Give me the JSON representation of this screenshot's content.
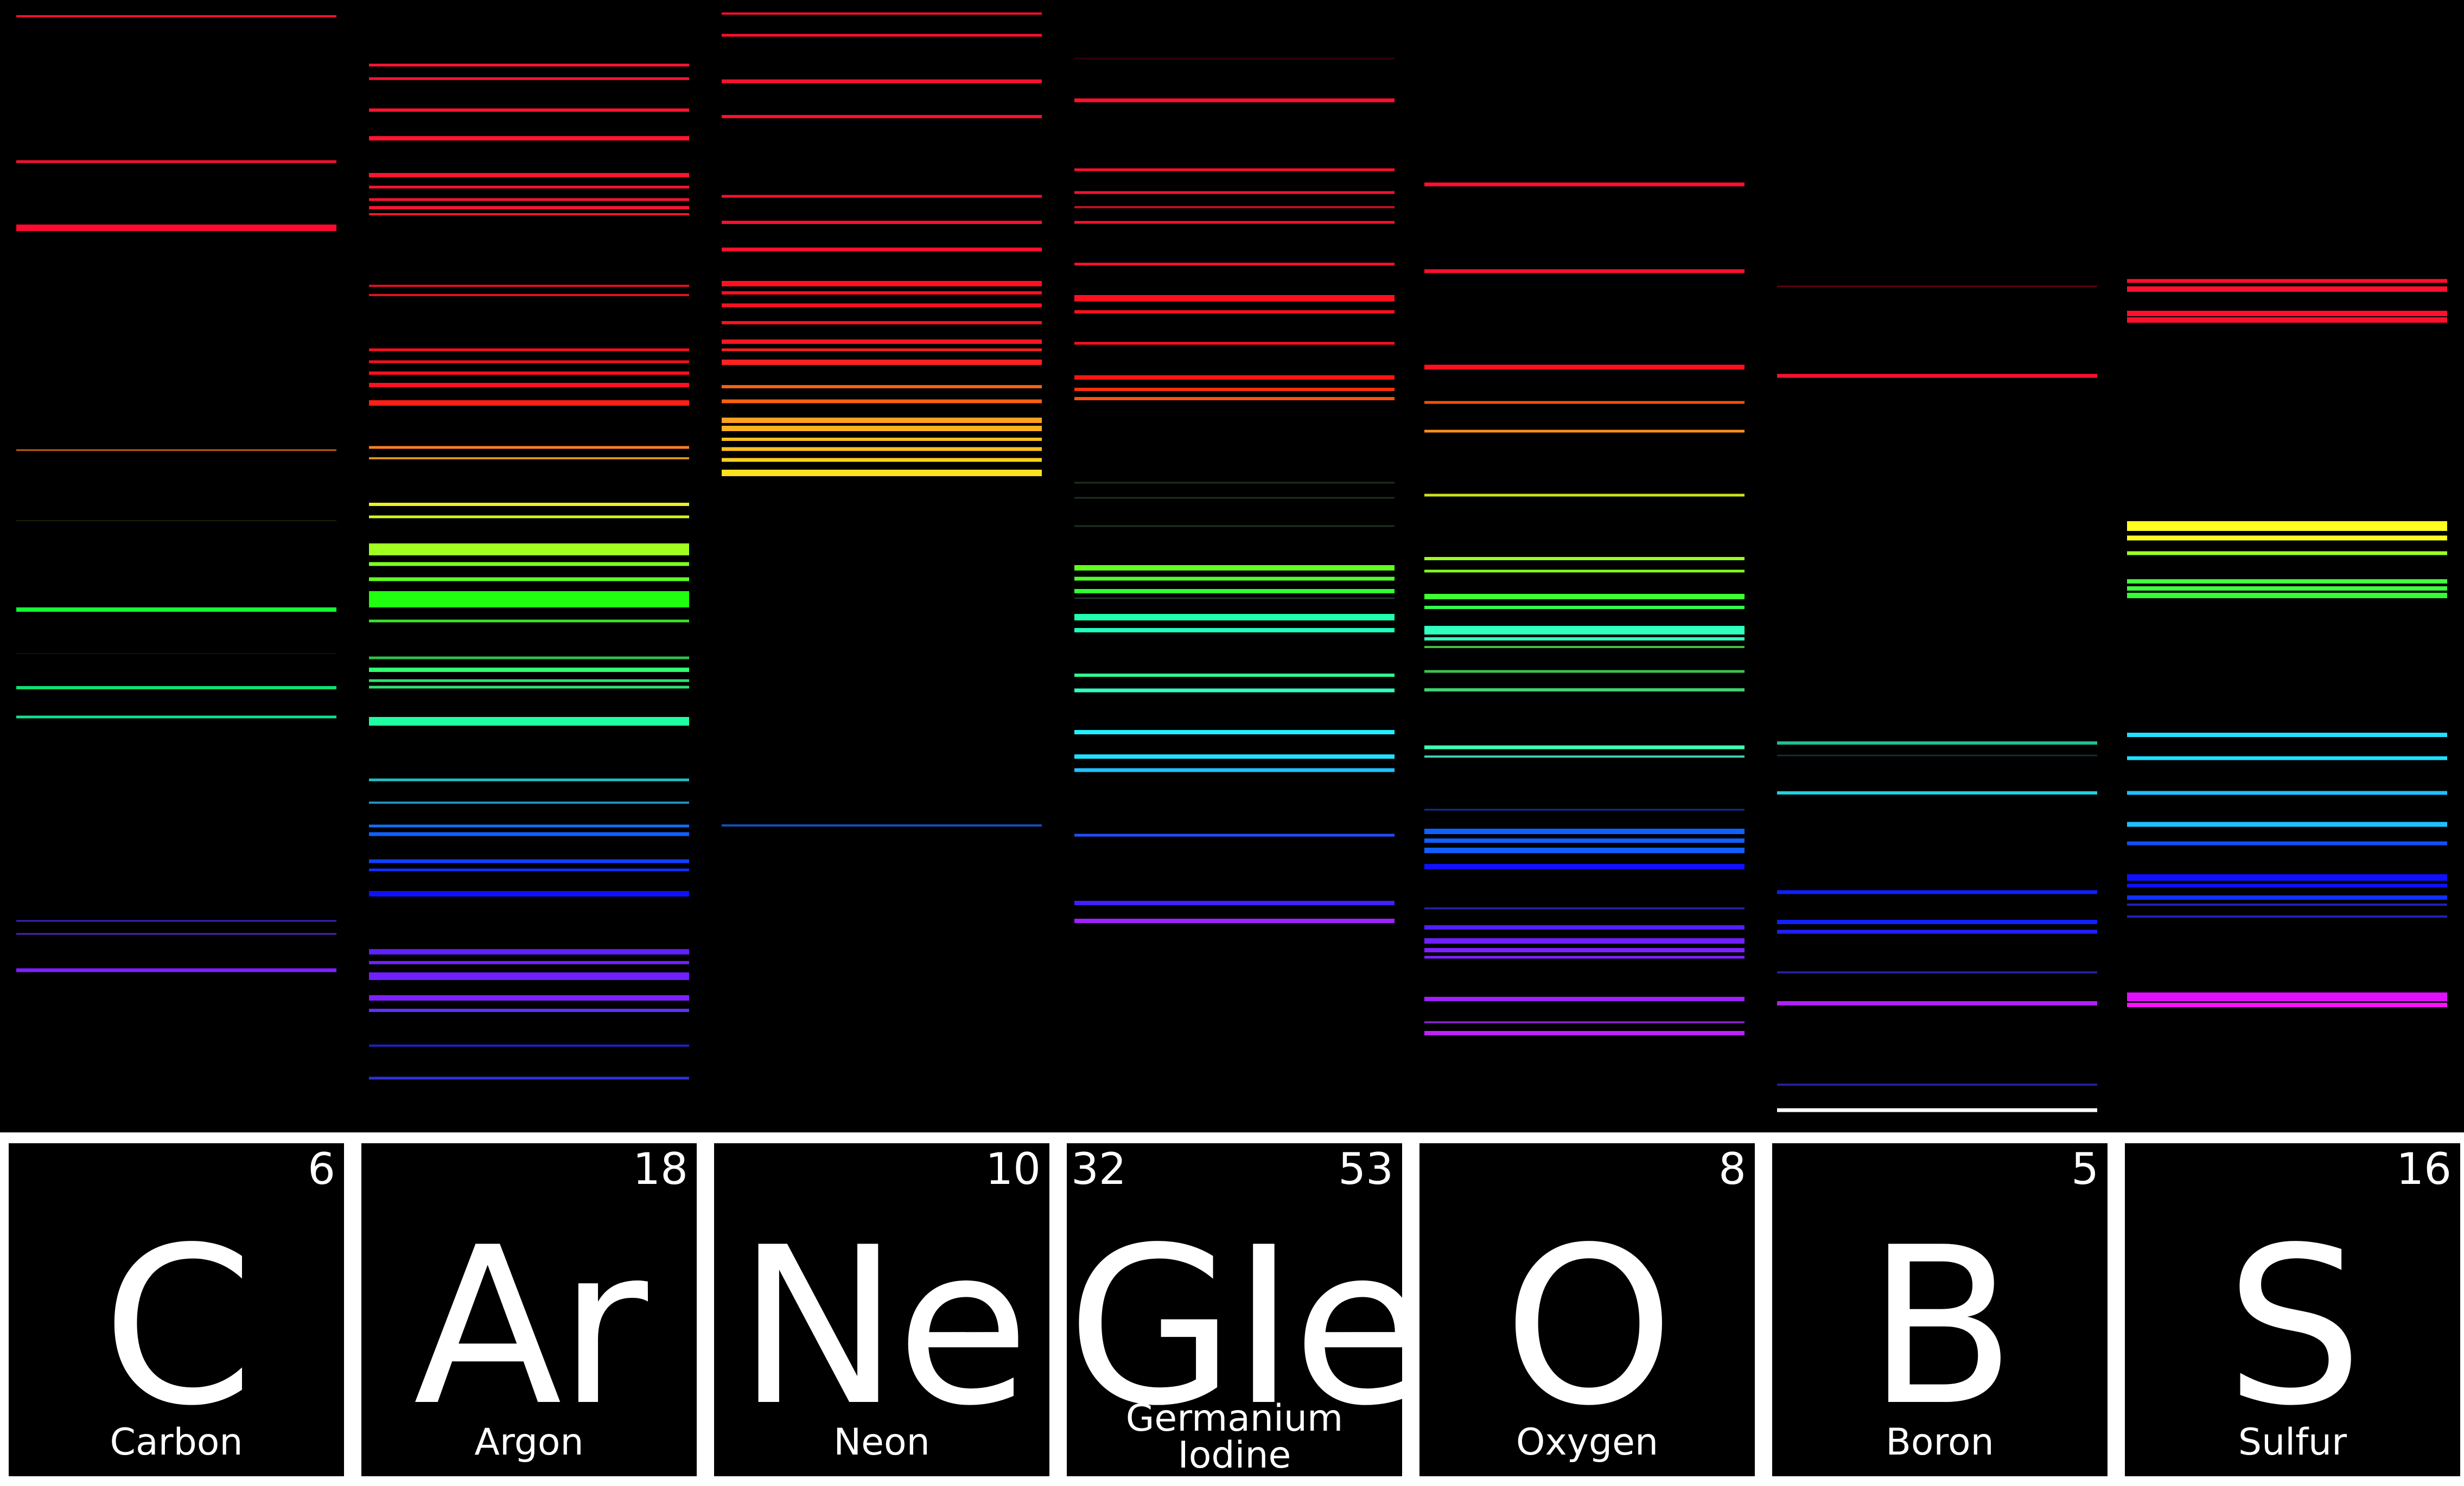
{
  "elements": [
    {
      "symbol": "C",
      "number": "6",
      "name": "Carbon",
      "lines": [
        [
          30,
          "#ff1030",
          4
        ],
        [
          298,
          "#ff1035",
          5
        ],
        [
          420,
          "#ff0a30",
          12
        ],
        [
          830,
          "#c06010",
          3
        ],
        [
          960,
          "#202000",
          2
        ],
        [
          1124,
          "#10ff30",
          8
        ],
        [
          1205,
          "#101010",
          2
        ],
        [
          1268,
          "#10e070",
          6
        ],
        [
          1322,
          "#10e090",
          5
        ],
        [
          1698,
          "#4020c0",
          3
        ],
        [
          1722,
          "#5020c0",
          3
        ],
        [
          1789,
          "#8020ff",
          7
        ]
      ]
    },
    {
      "symbol": "Ar",
      "number": "18",
      "name": "Argon",
      "lines": [
        [
          120,
          "#ff1535",
          5
        ],
        [
          145,
          "#ff1535",
          5
        ],
        [
          203,
          "#ff1530",
          6
        ],
        [
          255,
          "#ff1530",
          8
        ],
        [
          323,
          "#ff1530",
          8
        ],
        [
          345,
          "#ff1530",
          5
        ],
        [
          368,
          "#ff1530",
          5
        ],
        [
          383,
          "#ff1530",
          6
        ],
        [
          395,
          "#ff1530",
          4
        ],
        [
          527,
          "#e01025",
          4
        ],
        [
          544,
          "#e01025",
          4
        ],
        [
          645,
          "#ff1020",
          5
        ],
        [
          667,
          "#ff1020",
          5
        ],
        [
          688,
          "#ff1020",
          6
        ],
        [
          710,
          "#ff1020",
          8
        ],
        [
          743,
          "#ff2015",
          10
        ],
        [
          825,
          "#ff8020",
          5
        ],
        [
          845,
          "#e09020",
          4
        ],
        [
          930,
          "#f0f020",
          6
        ],
        [
          953,
          "#d0ff20",
          5
        ],
        [
          1013,
          "#a0ff20",
          22
        ],
        [
          1040,
          "#80ff20",
          7
        ],
        [
          1068,
          "#60ff20",
          7
        ],
        [
          1105,
          "#20ff10",
          30
        ],
        [
          1145,
          "#40e030",
          5
        ],
        [
          1213,
          "#30c050",
          5
        ],
        [
          1235,
          "#30ff70",
          8
        ],
        [
          1255,
          "#30e070",
          5
        ],
        [
          1267,
          "#30e070",
          5
        ],
        [
          1330,
          "#20ffa0",
          16
        ],
        [
          1438,
          "#20c0c0",
          5
        ],
        [
          1480,
          "#2090c0",
          4
        ],
        [
          1523,
          "#1070ff",
          5
        ],
        [
          1538,
          "#1060ff",
          7
        ],
        [
          1588,
          "#1040ff",
          7
        ],
        [
          1604,
          "#1030ff",
          5
        ],
        [
          1648,
          "#1010ff",
          10
        ],
        [
          1755,
          "#6020ff",
          10
        ],
        [
          1775,
          "#7020ff",
          6
        ],
        [
          1800,
          "#7020ff",
          14
        ],
        [
          1840,
          "#8020ff",
          10
        ],
        [
          1863,
          "#6030ff",
          6
        ],
        [
          1928,
          "#2020c0",
          4
        ],
        [
          1988,
          "#3030e0",
          5
        ]
      ]
    },
    {
      "symbol": "Ne",
      "number": "10",
      "name": "Neon",
      "lines": [
        [
          25,
          "#ff1030",
          4
        ],
        [
          65,
          "#ff1030",
          5
        ],
        [
          150,
          "#ff1030",
          7
        ],
        [
          215,
          "#ff1030",
          6
        ],
        [
          362,
          "#ff1030",
          5
        ],
        [
          410,
          "#ff1030",
          6
        ],
        [
          460,
          "#ff1030",
          7
        ],
        [
          523,
          "#ff1020",
          10
        ],
        [
          540,
          "#ff1020",
          6
        ],
        [
          563,
          "#ff1020",
          7
        ],
        [
          595,
          "#ff1020",
          6
        ],
        [
          630,
          "#ff1520",
          8
        ],
        [
          645,
          "#ff2020",
          5
        ],
        [
          668,
          "#ff2020",
          10
        ],
        [
          713,
          "#ff6010",
          6
        ],
        [
          740,
          "#ff6010",
          7
        ],
        [
          775,
          "#ffa020",
          10
        ],
        [
          790,
          "#ffb020",
          10
        ],
        [
          810,
          "#ffc020",
          6
        ],
        [
          828,
          "#ffc020",
          7
        ],
        [
          848,
          "#ffd020",
          7
        ],
        [
          872,
          "#ffe020",
          12
        ],
        [
          1522,
          "#1050c0",
          4
        ]
      ]
    },
    {
      "symbol": "GIe",
      "number_left": "32",
      "number": "53",
      "name_line1": "Germanium",
      "name_line2": "Iodine",
      "lines": [
        [
          108,
          "#300010",
          3
        ],
        [
          185,
          "#ff1030",
          7
        ],
        [
          313,
          "#ff1030",
          5
        ],
        [
          355,
          "#ff1030",
          5
        ],
        [
          382,
          "#c01020",
          4
        ],
        [
          410,
          "#ff1030",
          5
        ],
        [
          487,
          "#ff1030",
          5
        ],
        [
          550,
          "#ff1020",
          12
        ],
        [
          575,
          "#ff1020",
          6
        ],
        [
          633,
          "#ff1020",
          5
        ],
        [
          696,
          "#ff1510",
          8
        ],
        [
          718,
          "#ff3010",
          6
        ],
        [
          735,
          "#ff5010",
          6
        ],
        [
          890,
          "#203020",
          3
        ],
        [
          918,
          "#203020",
          3
        ],
        [
          970,
          "#203020",
          3
        ],
        [
          1047,
          "#60ff20",
          10
        ],
        [
          1067,
          "#50ff30",
          7
        ],
        [
          1090,
          "#30ff30",
          8
        ],
        [
          1103,
          "#203030",
          3
        ],
        [
          1138,
          "#20ffb0",
          12
        ],
        [
          1162,
          "#20ffc0",
          8
        ],
        [
          1245,
          "#30ff90",
          6
        ],
        [
          1273,
          "#30ffc0",
          7
        ],
        [
          1350,
          "#20f0ff",
          8
        ],
        [
          1395,
          "#20e0ff",
          8
        ],
        [
          1420,
          "#20c0ff",
          7
        ],
        [
          1540,
          "#2050ff",
          5
        ],
        [
          1665,
          "#4020ff",
          8
        ],
        [
          1698,
          "#a020ff",
          8
        ]
      ]
    },
    {
      "symbol": "O",
      "number": "8",
      "name": "Oxygen",
      "lines": [
        [
          340,
          "#ff1030",
          7
        ],
        [
          500,
          "#ff1030",
          7
        ],
        [
          677,
          "#ff1020",
          9
        ],
        [
          742,
          "#ff5010",
          5
        ],
        [
          795,
          "#ff9020",
          5
        ],
        [
          913,
          "#d0e020",
          5
        ],
        [
          1030,
          "#a0ff20",
          6
        ],
        [
          1053,
          "#80ff20",
          5
        ],
        [
          1100,
          "#40ff30",
          10
        ],
        [
          1120,
          "#30ff50",
          6
        ],
        [
          1162,
          "#30ffc0",
          16
        ],
        [
          1178,
          "#30ffc0",
          6
        ],
        [
          1193,
          "#40c040",
          4
        ],
        [
          1238,
          "#40c050",
          5
        ],
        [
          1272,
          "#40d070",
          6
        ],
        [
          1378,
          "#40ffb0",
          7
        ],
        [
          1395,
          "#40d0b0",
          4
        ],
        [
          1493,
          "#1030a0",
          3
        ],
        [
          1533,
          "#1060ff",
          10
        ],
        [
          1550,
          "#1060ff",
          8
        ],
        [
          1568,
          "#1060ff",
          10
        ],
        [
          1598,
          "#1010ff",
          10
        ],
        [
          1675,
          "#2020a0",
          4
        ],
        [
          1710,
          "#5020ff",
          8
        ],
        [
          1735,
          "#7020ff",
          10
        ],
        [
          1752,
          "#8020ff",
          8
        ],
        [
          1765,
          "#8020ff",
          5
        ],
        [
          1842,
          "#a020ff",
          8
        ],
        [
          1885,
          "#8020c0",
          4
        ],
        [
          1905,
          "#c020ff",
          8
        ]
      ]
    },
    {
      "symbol": "B",
      "number": "5",
      "name": "Boron",
      "lines": [
        [
          528,
          "#600010",
          3
        ],
        [
          693,
          "#ff1030",
          7
        ],
        [
          1370,
          "#20c090",
          6
        ],
        [
          1393,
          "#103030",
          3
        ],
        [
          1462,
          "#20d0e0",
          6
        ],
        [
          1645,
          "#1020ff",
          7
        ],
        [
          1700,
          "#1020ff",
          8
        ],
        [
          1718,
          "#2020ff",
          7
        ],
        [
          1793,
          "#2020a0",
          4
        ],
        [
          1850,
          "#b020ff",
          8
        ],
        [
          2000,
          "#2020a0",
          4
        ],
        [
          2047,
          "#ffffff",
          7
        ]
      ]
    },
    {
      "symbol": "S",
      "number": "16",
      "name": "Sulfur",
      "lines": [
        [
          518,
          "#ff1030",
          7
        ],
        [
          533,
          "#ff1030",
          10
        ],
        [
          578,
          "#ff1030",
          10
        ],
        [
          590,
          "#ff1030",
          10
        ],
        [
          970,
          "#ffff20",
          18
        ],
        [
          992,
          "#ffff20",
          9
        ],
        [
          1020,
          "#a0ff20",
          7
        ],
        [
          1072,
          "#40ff40",
          8
        ],
        [
          1085,
          "#40ff40",
          8
        ],
        [
          1098,
          "#30ff30",
          10
        ],
        [
          1355,
          "#20e0ff",
          8
        ],
        [
          1398,
          "#20e0ff",
          7
        ],
        [
          1462,
          "#20c0ff",
          7
        ],
        [
          1520,
          "#20c0ff",
          9
        ],
        [
          1555,
          "#1050ff",
          7
        ],
        [
          1618,
          "#1010ff",
          12
        ],
        [
          1633,
          "#1010ff",
          7
        ],
        [
          1655,
          "#1030ff",
          8
        ],
        [
          1668,
          "#2020c0",
          4
        ],
        [
          1690,
          "#2020c0",
          4
        ],
        [
          1838,
          "#e010ff",
          16
        ],
        [
          1853,
          "#ff10ff",
          8
        ]
      ]
    }
  ]
}
